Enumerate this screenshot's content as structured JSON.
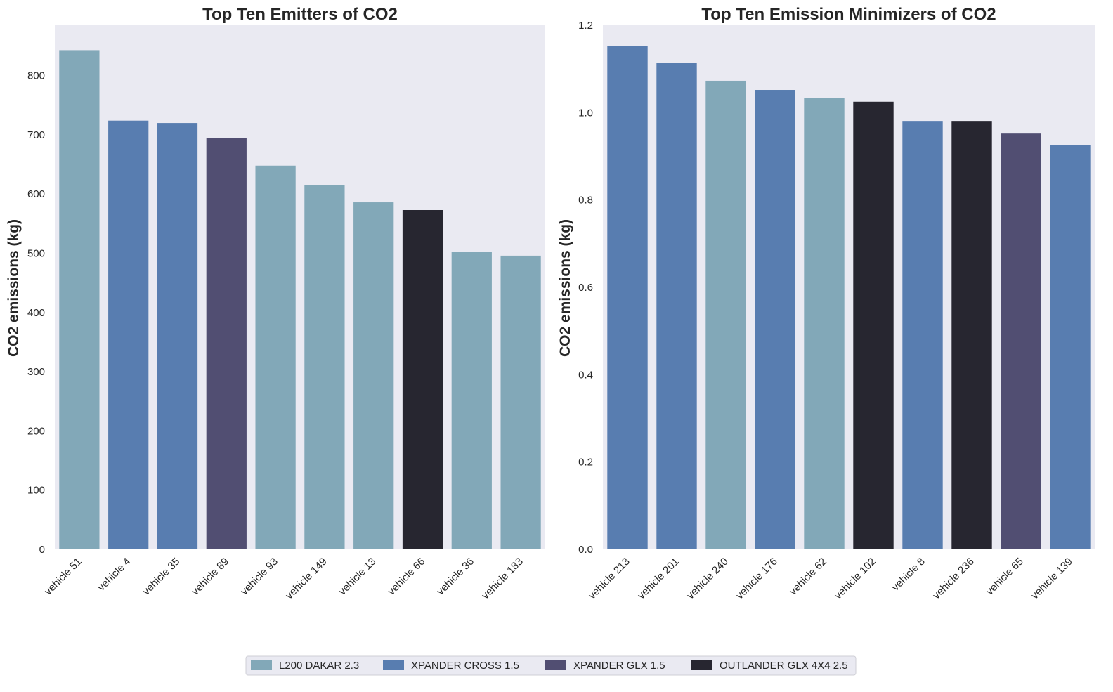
{
  "colors": {
    "L200 DAKAR 2.3": "#82a8b8",
    "XPANDER CROSS 1.5": "#587db0",
    "XPANDER GLX 1.5": "#514e72",
    "OUTLANDER GLX 4X4 2.5": "#272630",
    "plot_bg": "#eaeaf2"
  },
  "legend": {
    "placement": "bottom-center",
    "entries": [
      "L200 DAKAR 2.3",
      "XPANDER CROSS 1.5",
      "XPANDER GLX 1.5",
      "OUTLANDER GLX 4X4 2.5"
    ]
  },
  "chart_data": [
    {
      "type": "bar",
      "title": "Top Ten Emitters of CO2",
      "xlabel": "",
      "ylabel": "CO2 emissions (kg)",
      "ylim": [
        0,
        885
      ],
      "yticks": [
        0,
        100,
        200,
        300,
        400,
        500,
        600,
        700,
        800
      ],
      "grid": false,
      "categories": [
        "vehicle 51",
        "vehicle 4",
        "vehicle 35",
        "vehicle 89",
        "vehicle 93",
        "vehicle 149",
        "vehicle 13",
        "vehicle 66",
        "vehicle 36",
        "vehicle 183"
      ],
      "values": [
        843,
        724,
        720,
        694,
        648,
        615,
        586,
        573,
        503,
        496
      ],
      "models": [
        "L200 DAKAR 2.3",
        "XPANDER CROSS 1.5",
        "XPANDER CROSS 1.5",
        "XPANDER GLX 1.5",
        "L200 DAKAR 2.3",
        "L200 DAKAR 2.3",
        "L200 DAKAR 2.3",
        "OUTLANDER GLX 4X4 2.5",
        "L200 DAKAR 2.3",
        "L200 DAKAR 2.3"
      ]
    },
    {
      "type": "bar",
      "title": "Top Ten Emission Minimizers of CO2",
      "xlabel": "",
      "ylabel": "CO2 emissions (kg)",
      "ylim": [
        0,
        1.2
      ],
      "yticks": [
        0.0,
        0.2,
        0.4,
        0.6,
        0.8,
        1.0,
        1.2
      ],
      "grid": false,
      "categories": [
        "vehicle 213",
        "vehicle 201",
        "vehicle 240",
        "vehicle 176",
        "vehicle 62",
        "vehicle 102",
        "vehicle 8",
        "vehicle 236",
        "vehicle 65",
        "vehicle 139"
      ],
      "values": [
        1.152,
        1.114,
        1.073,
        1.052,
        1.033,
        1.025,
        0.981,
        0.981,
        0.952,
        0.926
      ],
      "models": [
        "XPANDER CROSS 1.5",
        "XPANDER CROSS 1.5",
        "L200 DAKAR 2.3",
        "XPANDER CROSS 1.5",
        "L200 DAKAR 2.3",
        "OUTLANDER GLX 4X4 2.5",
        "XPANDER CROSS 1.5",
        "OUTLANDER GLX 4X4 2.5",
        "XPANDER GLX 1.5",
        "XPANDER CROSS 1.5"
      ]
    }
  ]
}
